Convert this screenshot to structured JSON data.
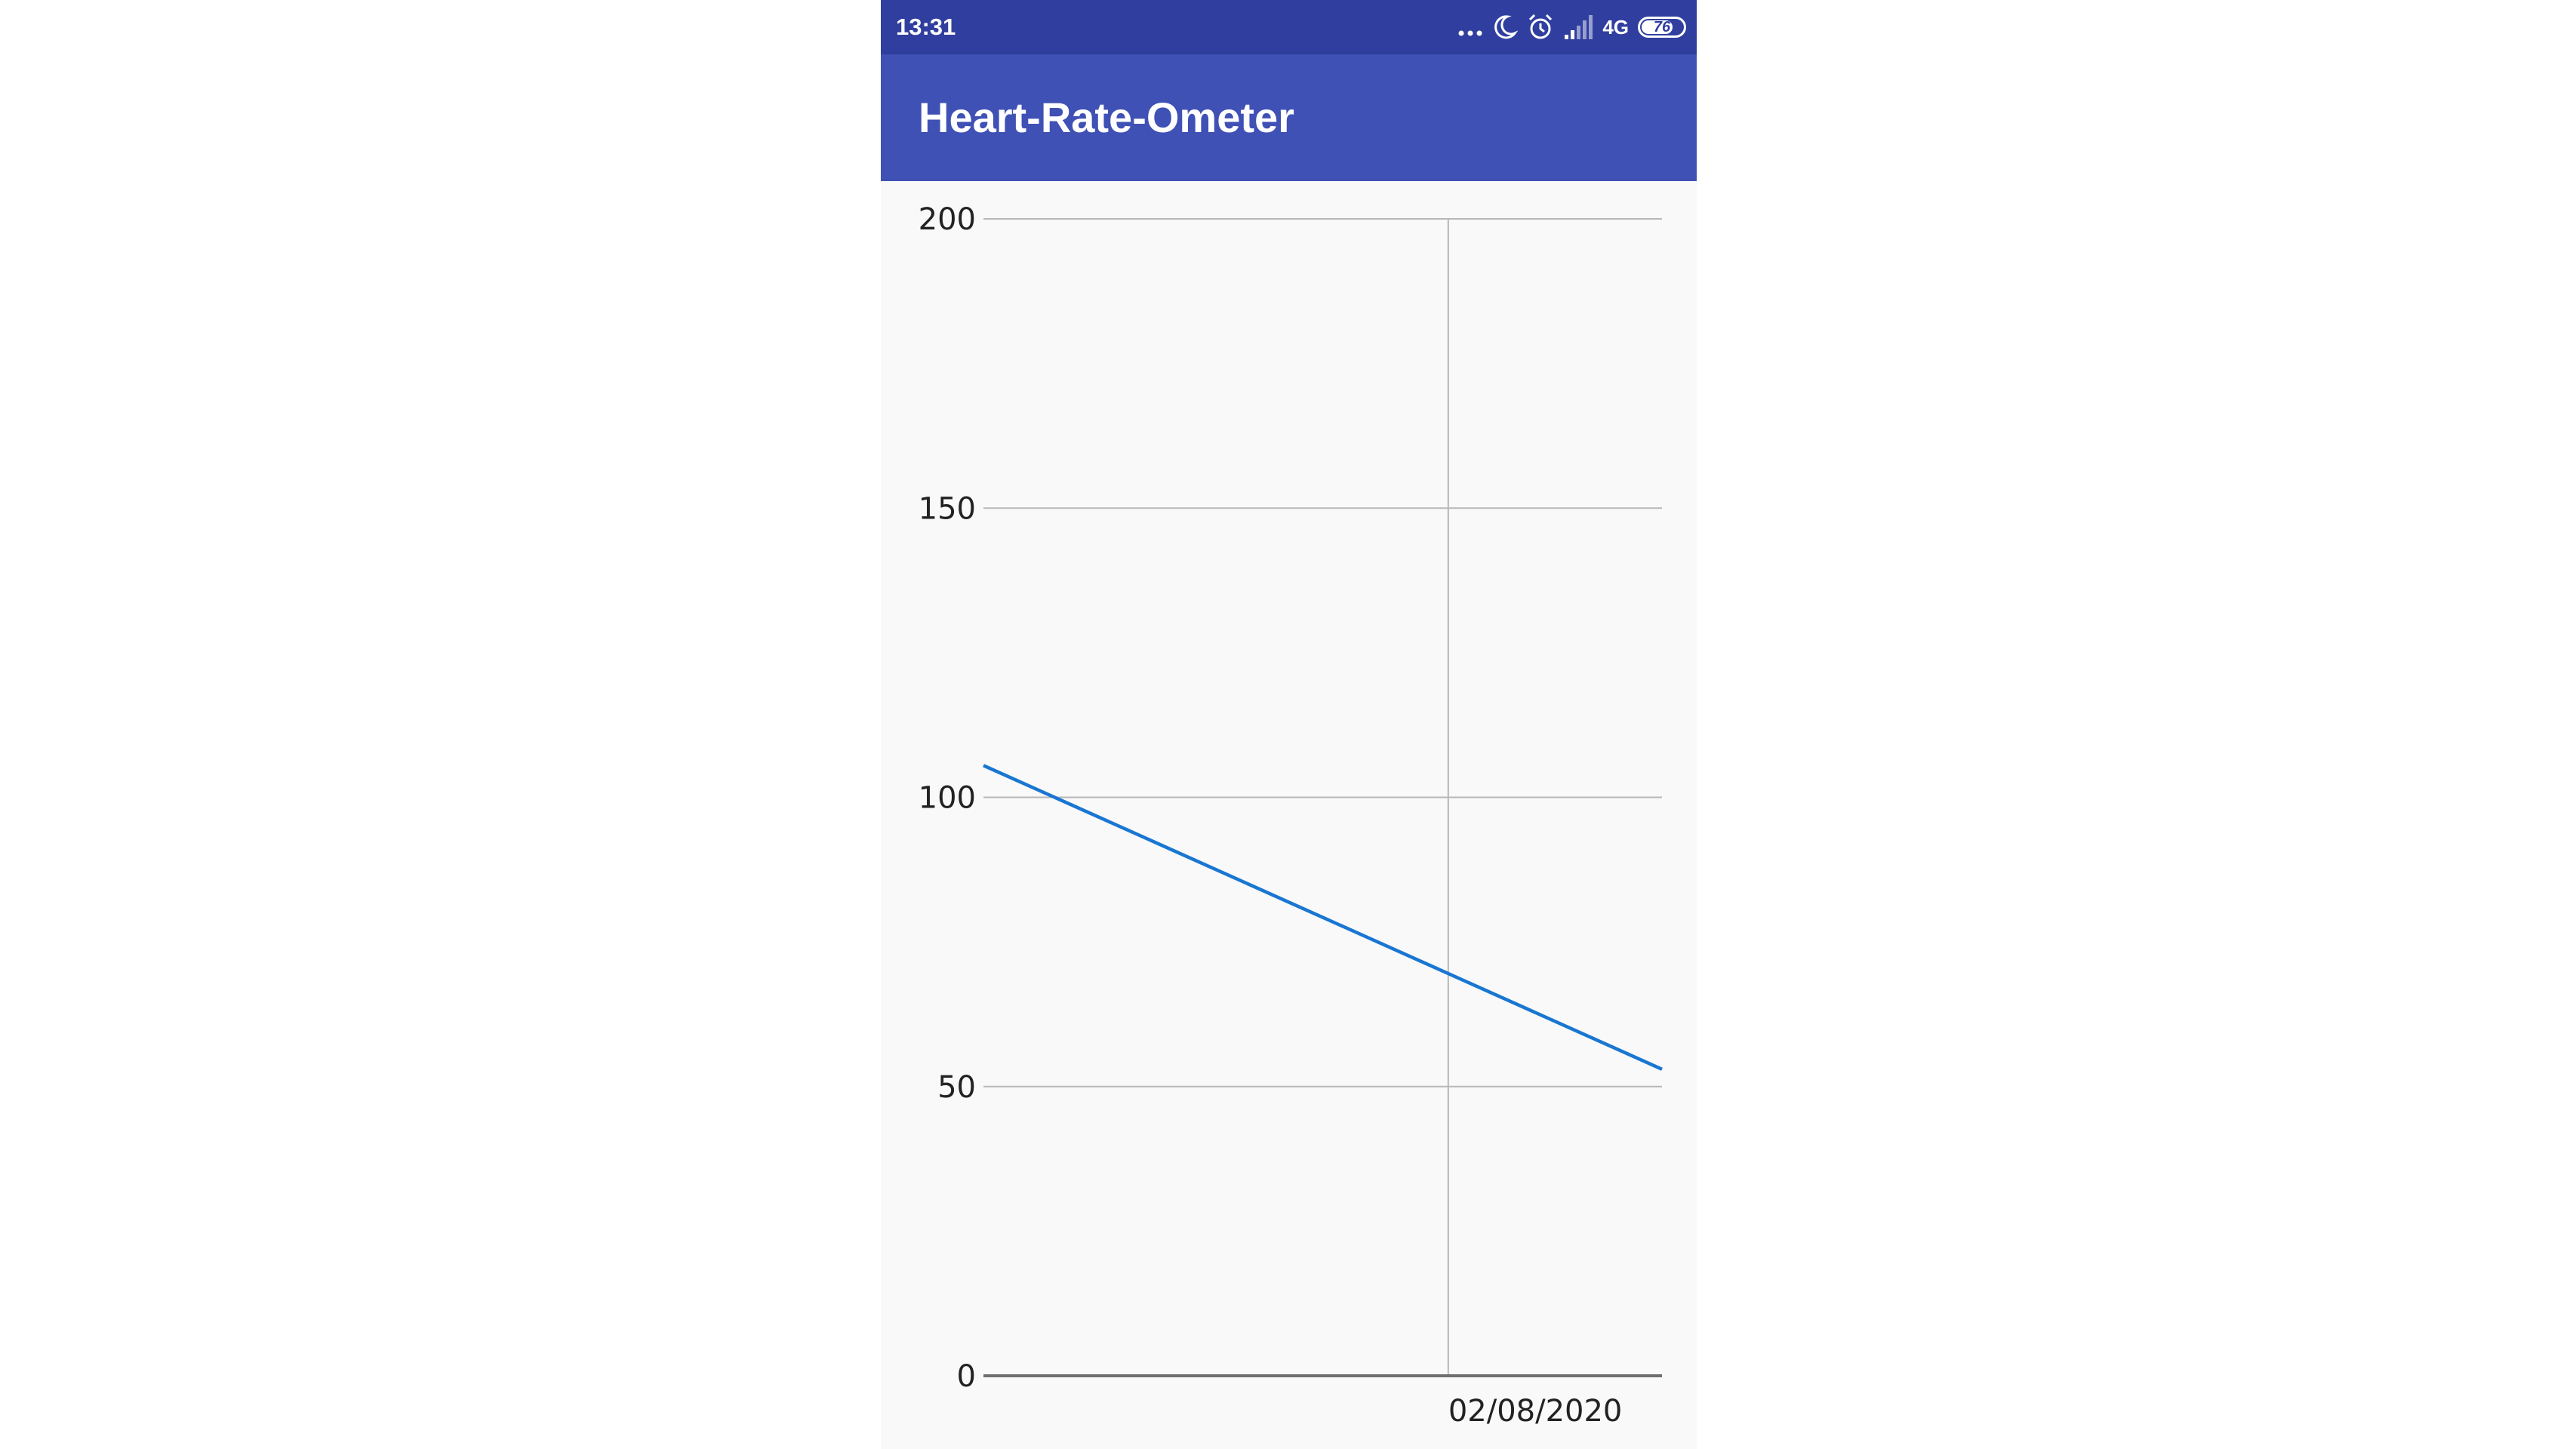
{
  "status_bar": {
    "time": "13:31",
    "network": "4G",
    "battery_level": 76,
    "battery_label": "76",
    "icons": [
      "more-dots-icon",
      "moon-icon",
      "alarm-icon",
      "signal-icon",
      "battery-icon"
    ],
    "background": "#303f9f"
  },
  "app_bar": {
    "title": "Heart-Rate-Ometer",
    "background": "#3f51b5"
  },
  "chart_data": {
    "type": "line",
    "title": "",
    "xlabel": "",
    "ylabel": "",
    "ylim": [
      0,
      200
    ],
    "y_ticks": [
      "200",
      "150",
      "100",
      "50",
      "0"
    ],
    "x_tick_labels": [
      "02/08/2020"
    ],
    "grid": true,
    "line_color": "#1976d2",
    "series": [
      {
        "points": [
          {
            "x": 0.0,
            "y": 105.5
          },
          {
            "x": 1.0,
            "y": 53
          }
        ]
      }
    ]
  }
}
